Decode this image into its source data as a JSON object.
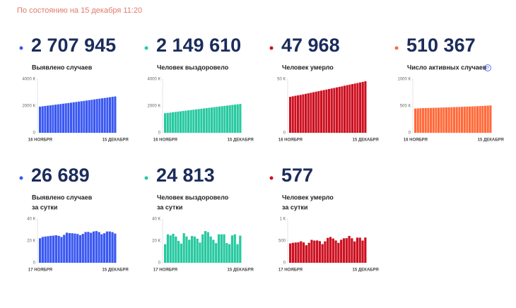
{
  "header": {
    "date": "По состоянию на 15 декабря 11:20"
  },
  "chart_data": [
    {
      "type": "bar",
      "total": "2 707 945",
      "title": "Выявлено случаев",
      "color": "#3a58f2",
      "categories": [
        "16 НОЯБРЯ",
        null,
        null,
        null,
        null,
        null,
        null,
        null,
        null,
        null,
        null,
        null,
        null,
        null,
        null,
        null,
        null,
        null,
        null,
        null,
        null,
        null,
        null,
        null,
        null,
        null,
        null,
        null,
        null,
        "15 ДЕКАБРЯ"
      ],
      "values": [
        1950000,
        1975000,
        1999000,
        2024000,
        2048000,
        2072000,
        2096000,
        2120000,
        2145000,
        2170000,
        2196000,
        2222000,
        2248000,
        2274000,
        2300000,
        2326000,
        2352000,
        2379000,
        2405000,
        2432000,
        2460000,
        2488000,
        2516000,
        2544000,
        2572000,
        2597000,
        2625000,
        2653000,
        2681000,
        2708000
      ],
      "ylim": [
        0,
        4000000
      ],
      "yticks": [
        0,
        {
          "value": 2000000,
          "label": "2000 К"
        },
        {
          "value": 4000000,
          "label": "4000 К"
        }
      ]
    },
    {
      "type": "bar",
      "total": "2 149 610",
      "title": "Человек выздоровело",
      "color": "#27c9a0",
      "categories": [
        "16 НОЯБРЯ",
        null,
        null,
        null,
        null,
        null,
        null,
        null,
        null,
        null,
        null,
        null,
        null,
        null,
        null,
        null,
        null,
        null,
        null,
        null,
        null,
        null,
        null,
        null,
        null,
        null,
        null,
        null,
        null,
        "15 ДЕКАБРЯ"
      ],
      "values": [
        1460000,
        1484000,
        1508000,
        1531000,
        1555000,
        1579000,
        1603000,
        1627000,
        1650000,
        1674000,
        1698000,
        1722000,
        1746000,
        1769000,
        1793000,
        1817000,
        1841000,
        1865000,
        1888000,
        1912000,
        1936000,
        1960000,
        1984000,
        2007000,
        2031000,
        2055000,
        2079000,
        2103000,
        2126000,
        2150000
      ],
      "ylim": [
        0,
        4000000
      ],
      "yticks": [
        0,
        {
          "value": 2000000,
          "label": "2000 К"
        },
        {
          "value": 4000000,
          "label": "4000 К"
        }
      ]
    },
    {
      "type": "bar",
      "total": "47 968",
      "title": "Человек умерло",
      "color": "#cc1020",
      "categories": [
        "16 НОЯБРЯ",
        null,
        null,
        null,
        null,
        null,
        null,
        null,
        null,
        null,
        null,
        null,
        null,
        null,
        null,
        null,
        null,
        null,
        null,
        null,
        null,
        null,
        null,
        null,
        null,
        null,
        null,
        null,
        null,
        "15 ДЕКАБРЯ"
      ],
      "values": [
        33500,
        34000,
        34500,
        34900,
        35300,
        35800,
        36300,
        36800,
        37300,
        37800,
        38300,
        38800,
        39300,
        39800,
        40300,
        40800,
        41300,
        41800,
        42300,
        42800,
        43300,
        43900,
        44400,
        44900,
        45400,
        45900,
        46400,
        46900,
        47400,
        48000
      ],
      "ylim": [
        0,
        50000
      ],
      "yticks": [
        0,
        {
          "value": 50000,
          "label": "50 К"
        }
      ]
    },
    {
      "type": "bar",
      "total": "510 367",
      "title": "Число активных случаев",
      "color": "#ff6a3a",
      "categories": [
        "16 НОЯБРЯ",
        null,
        null,
        null,
        null,
        null,
        null,
        null,
        null,
        null,
        null,
        null,
        null,
        null,
        null,
        null,
        null,
        null,
        null,
        null,
        null,
        null,
        null,
        null,
        null,
        null,
        null,
        null,
        null,
        "15 ДЕКАБРЯ"
      ],
      "values": [
        452000,
        455000,
        458000,
        460000,
        462000,
        463000,
        464000,
        466000,
        467000,
        468000,
        470000,
        472000,
        473000,
        475000,
        476000,
        478000,
        480000,
        482000,
        484000,
        486000,
        488000,
        490000,
        492000,
        494000,
        496000,
        498000,
        501000,
        504000,
        507000,
        510000
      ],
      "ylim": [
        0,
        1000000
      ],
      "yticks": [
        0,
        {
          "value": 500000,
          "label": "500 К"
        },
        {
          "value": 1000000,
          "label": "1000 К"
        }
      ]
    },
    {
      "type": "bar",
      "total": "26 689",
      "title": "Выявлено случаев",
      "subtitle": "за сутки",
      "color": "#3a58f2",
      "categories": [
        "17 НОЯБРЯ",
        null,
        null,
        null,
        null,
        null,
        null,
        null,
        null,
        null,
        null,
        null,
        null,
        null,
        null,
        null,
        null,
        null,
        null,
        null,
        null,
        null,
        null,
        null,
        null,
        null,
        null,
        null,
        "15 ДЕКАБРЯ"
      ],
      "values": [
        22400,
        23600,
        24000,
        24300,
        24600,
        24800,
        25200,
        24600,
        23600,
        25500,
        27500,
        27100,
        27000,
        26700,
        26300,
        25300,
        26400,
        28100,
        28200,
        27400,
        28600,
        29000,
        28100,
        26100,
        27000,
        28600,
        28600,
        28000,
        26700
      ],
      "ylim": [
        0,
        40000
      ],
      "yticks": [
        0,
        {
          "value": 20000,
          "label": "20 К"
        },
        {
          "value": 40000,
          "label": "40 К"
        }
      ]
    },
    {
      "type": "bar",
      "total": "24 813",
      "title": "Человек выздоровело",
      "subtitle": "за сутки",
      "color": "#27c9a0",
      "categories": [
        "17 НОЯБРЯ",
        null,
        null,
        null,
        null,
        null,
        null,
        null,
        null,
        null,
        null,
        null,
        null,
        null,
        null,
        null,
        null,
        null,
        null,
        null,
        null,
        null,
        null,
        null,
        null,
        null,
        null,
        null,
        "15 ДЕКАБРЯ"
      ],
      "values": [
        17000,
        26000,
        25000,
        26500,
        24000,
        20000,
        17500,
        27000,
        24000,
        21000,
        24500,
        24000,
        22000,
        18500,
        26000,
        29000,
        28000,
        24000,
        21000,
        18000,
        26000,
        26000,
        26000,
        18000,
        17000,
        25000,
        26000,
        17000,
        24800
      ],
      "ylim": [
        0,
        40000
      ],
      "yticks": [
        0,
        {
          "value": 20000,
          "label": "20 К"
        },
        {
          "value": 40000,
          "label": "40 К"
        }
      ]
    },
    {
      "type": "bar",
      "total": "577",
      "title": "Человек умерло",
      "subtitle": "за сутки",
      "color": "#cc1020",
      "categories": [
        "17 НОЯБРЯ",
        null,
        null,
        null,
        null,
        null,
        null,
        null,
        null,
        null,
        null,
        null,
        null,
        null,
        null,
        null,
        null,
        null,
        null,
        null,
        null,
        null,
        null,
        null,
        null,
        null,
        null,
        null,
        "15 ДЕКАБРЯ"
      ],
      "values": [
        442,
        456,
        463,
        467,
        491,
        465,
        401,
        456,
        524,
        507,
        510,
        496,
        427,
        491,
        569,
        589,
        554,
        510,
        456,
        526,
        559,
        562,
        613,
        560,
        488,
        575,
        573,
        508,
        577
      ],
      "ylim": [
        0,
        1000
      ],
      "yticks": [
        0,
        500,
        {
          "value": 1000,
          "label": "1 К"
        }
      ]
    }
  ]
}
